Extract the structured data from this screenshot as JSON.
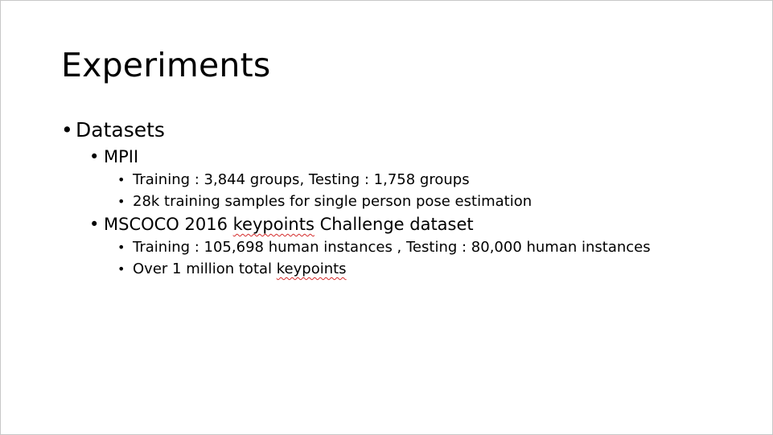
{
  "slide": {
    "title": "Experiments",
    "bullet_glyph": "•",
    "spellcheck_color": "#d42a2a",
    "items": [
      {
        "level": 1,
        "text": "Datasets"
      },
      {
        "level": 2,
        "text": "MPII"
      },
      {
        "level": 3,
        "text": "Training : 3,844 groups, Testing : 1,758 groups"
      },
      {
        "level": 3,
        "text": "28k training samples for single person pose estimation"
      },
      {
        "level": 2,
        "text_before": "MSCOCO 2016 ",
        "text_flagged": "keypoints",
        "text_after": " Challenge dataset"
      },
      {
        "level": 3,
        "text": "Training : 105,698 human instances , Testing : 80,000 human instances"
      },
      {
        "level": 3,
        "text_before": "Over 1 million total ",
        "text_flagged": "keypoints",
        "text_after": ""
      }
    ]
  }
}
